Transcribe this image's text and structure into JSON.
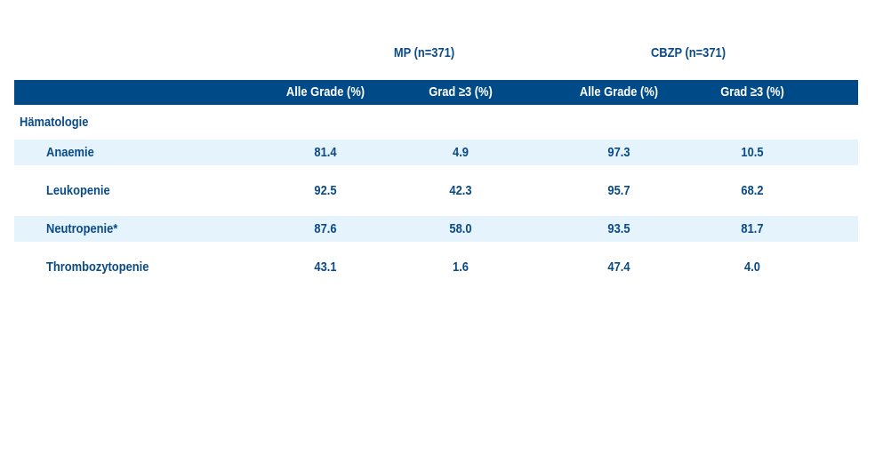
{
  "groups": {
    "mp": "MP (n=371)",
    "cbzp": "CBZP (n=371)"
  },
  "columns": [
    "Alle Grade (%)",
    "Grad ≥3 (%)",
    "Alle Grade (%)",
    "Grad ≥3 (%)"
  ],
  "section": "Hämatologie",
  "rows": [
    {
      "label": "Anaemie",
      "values": [
        "81.4",
        "4.9",
        "97.3",
        "10.5"
      ]
    },
    {
      "label": "Leukopenie",
      "values": [
        "92.5",
        "42.3",
        "95.7",
        "68.2"
      ]
    },
    {
      "label": "Neutropenie*",
      "values": [
        "87.6",
        "58.0",
        "93.5",
        "81.7"
      ]
    },
    {
      "label": "Thrombozytopenie",
      "values": [
        "43.1",
        "1.6",
        "47.4",
        "4.0"
      ]
    }
  ],
  "colors": {
    "header_bg": "#004b87",
    "text": "#0a4a86",
    "row_shade": "#e5f3fc"
  }
}
